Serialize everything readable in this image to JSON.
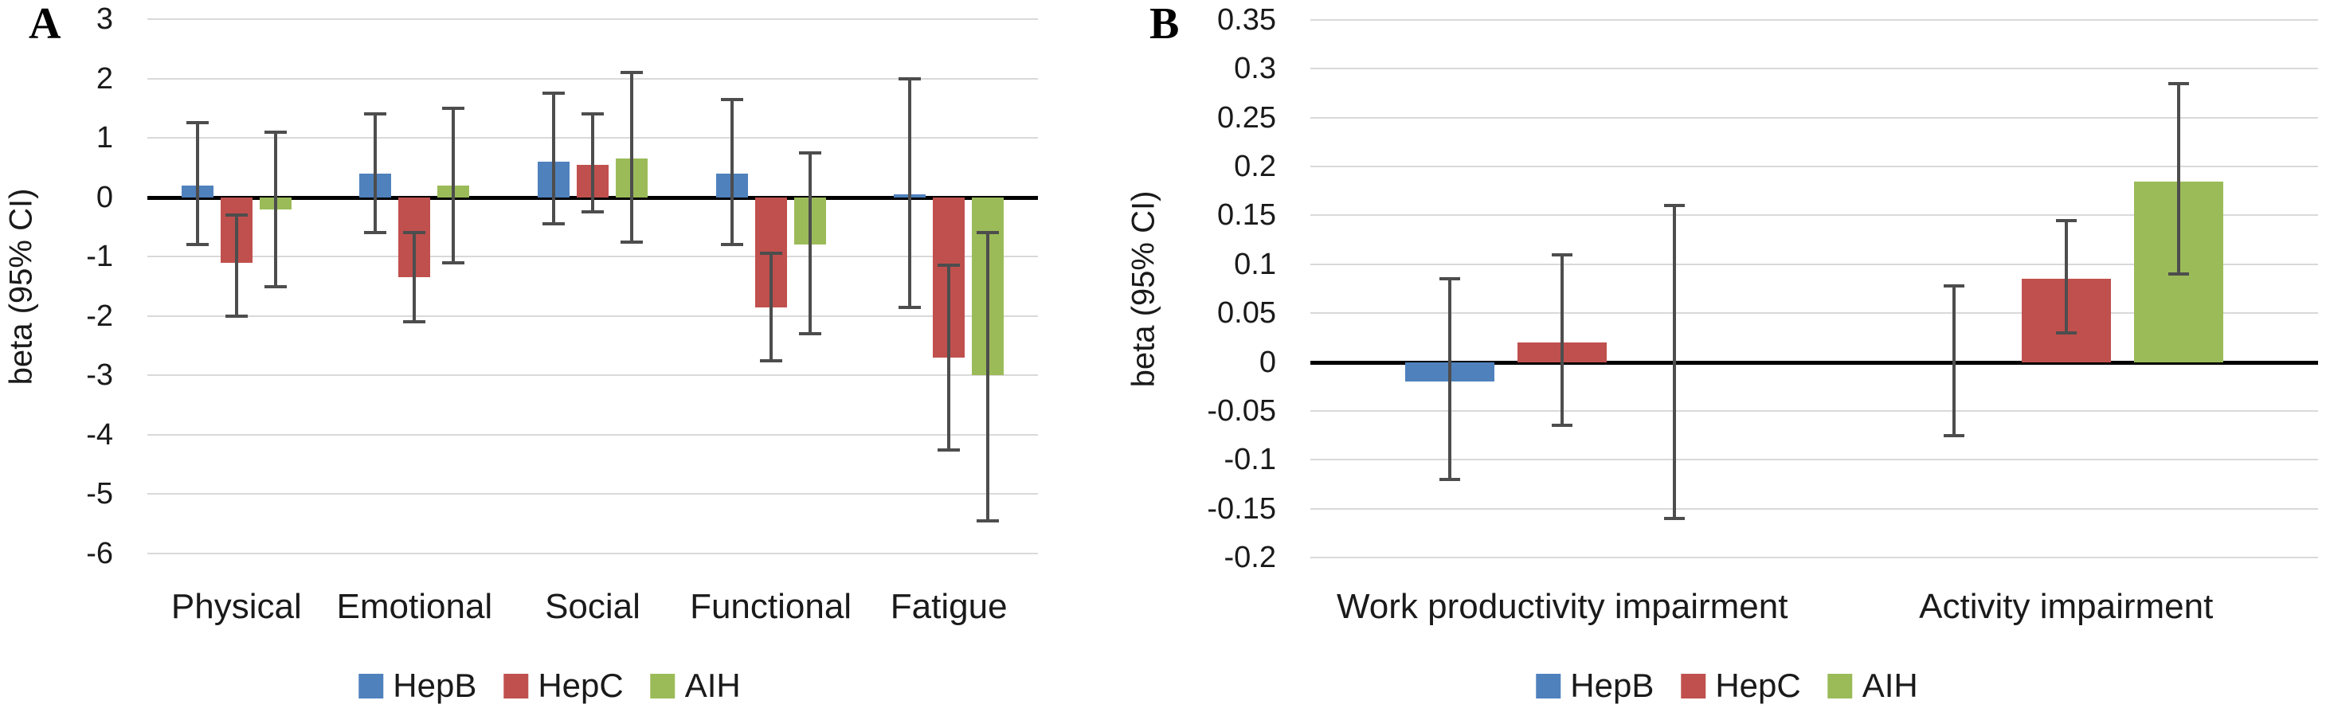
{
  "figure_type": "two-panel bar chart with 95% CI error bars",
  "colors": {
    "hepb": "#4F81BD",
    "hepc": "#C0504D",
    "aih": "#9BBB59",
    "error_bar": "#4D4D4D",
    "zero_line": "#000000",
    "gridline": "#D9D9D9",
    "background": "#FFFFFF",
    "text": "#1A1A1A"
  },
  "chart_data": [
    {
      "type": "bar",
      "panel_label": "A",
      "ylabel": "beta (95% CI)",
      "ylim": [
        -6,
        3
      ],
      "ytick_step": 1,
      "ytick_values": [
        3,
        2,
        1,
        0,
        -1,
        -2,
        -3,
        -4,
        -5,
        -6
      ],
      "ytick_labels": [
        "3",
        "2",
        "1",
        "0",
        "-1",
        "-2",
        "-3",
        "-4",
        "-5",
        "-6"
      ],
      "categories": [
        "Physical",
        "Emotional",
        "Social",
        "Functional",
        "Fatigue"
      ],
      "grid": true,
      "legend_position": "bottom",
      "series": [
        {
          "name": "HepB",
          "color": "#4F81BD",
          "values": [
            0.2,
            0.4,
            0.6,
            0.4,
            0.05
          ],
          "ci_low": [
            -0.8,
            -0.6,
            -0.45,
            -0.8,
            -1.85
          ],
          "ci_high": [
            1.25,
            1.4,
            1.75,
            1.65,
            2.0
          ]
        },
        {
          "name": "HepC",
          "color": "#C0504D",
          "values": [
            -1.1,
            -1.35,
            0.55,
            -1.85,
            -2.7
          ],
          "ci_low": [
            -2.0,
            -2.1,
            -0.25,
            -2.75,
            -4.25
          ],
          "ci_high": [
            -0.3,
            -0.6,
            1.4,
            -0.95,
            -1.15
          ]
        },
        {
          "name": "AIH",
          "color": "#9BBB59",
          "values": [
            -0.2,
            0.2,
            0.65,
            -0.8,
            -3.0
          ],
          "ci_low": [
            -1.5,
            -1.1,
            -0.75,
            -2.3,
            -5.45
          ],
          "ci_high": [
            1.1,
            1.5,
            2.1,
            0.75,
            -0.6
          ]
        }
      ]
    },
    {
      "type": "bar",
      "panel_label": "B",
      "ylabel": "beta (95% CI)",
      "ylim": [
        -0.2,
        0.35
      ],
      "ytick_step": 0.05,
      "ytick_values": [
        0.35,
        0.3,
        0.25,
        0.2,
        0.15,
        0.1,
        0.05,
        0,
        -0.05,
        -0.1,
        -0.15,
        -0.2
      ],
      "ytick_labels": [
        "0.35",
        "0.3",
        "0.25",
        "0.2",
        "0.15",
        "0.1",
        "0.05",
        "0",
        "-0.05",
        "-0.1",
        "-0.15",
        "-0.2"
      ],
      "categories": [
        "Work productivity impairment",
        "Activity impairment"
      ],
      "grid": true,
      "legend_position": "bottom",
      "series": [
        {
          "name": "HepB",
          "color": "#4F81BD",
          "values": [
            -0.02,
            0
          ],
          "ci_low": [
            -0.12,
            -0.075
          ],
          "ci_high": [
            0.085,
            0.078
          ]
        },
        {
          "name": "HepC",
          "color": "#C0504D",
          "values": [
            0.02,
            0.085
          ],
          "ci_low": [
            -0.065,
            0.03
          ],
          "ci_high": [
            0.11,
            0.145
          ]
        },
        {
          "name": "AIH",
          "color": "#9BBB59",
          "values": [
            0,
            0.185
          ],
          "ci_low": [
            -0.16,
            0.09
          ],
          "ci_high": [
            0.16,
            0.285
          ]
        }
      ]
    }
  ]
}
